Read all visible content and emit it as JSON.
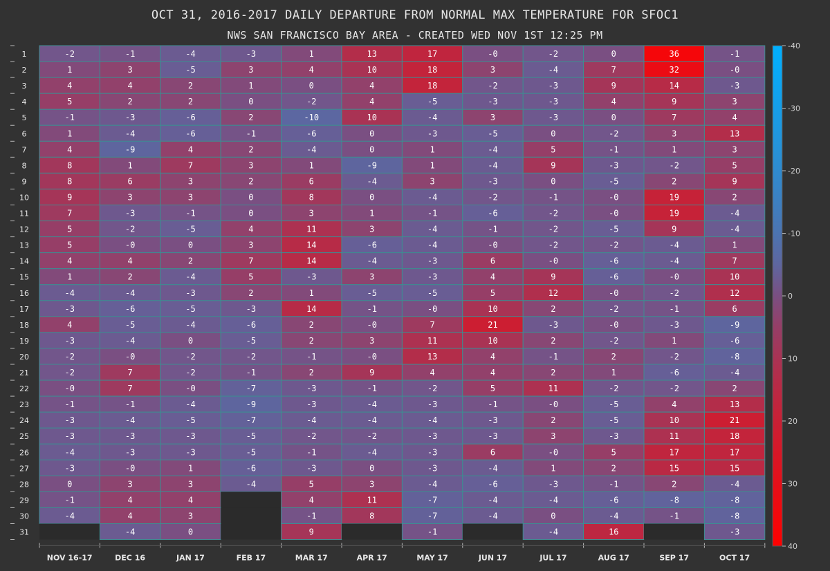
{
  "chart_data": {
    "type": "heatmap",
    "title": "OCT 31, 2016-2017 DAILY DEPARTURE FROM NORMAL MAX TEMPERATURE FOR SFOC1",
    "subtitle": "NWS SAN FRANCISCO BAY AREA - CREATED WED NOV 1ST 12:25 PM",
    "columns": [
      "NOV 16-17",
      "DEC 16",
      "JAN 17",
      "FEB 17",
      "MAR 17",
      "APR 17",
      "MAY 17",
      "JUN 17",
      "JUL 17",
      "AUG 17",
      "SEP 17",
      "OCT 17"
    ],
    "rows": [
      "1",
      "2",
      "3",
      "4",
      "5",
      "6",
      "7",
      "8",
      "9",
      "10",
      "11",
      "12",
      "13",
      "14",
      "15",
      "16",
      "17",
      "18",
      "19",
      "20",
      "21",
      "22",
      "23",
      "24",
      "25",
      "26",
      "27",
      "28",
      "29",
      "30",
      "31"
    ],
    "values": [
      [
        "-2",
        "-1",
        "-4",
        "-3",
        "1",
        "13",
        "17",
        "-0",
        "-2",
        "0",
        "36",
        "-1"
      ],
      [
        "1",
        "3",
        "-5",
        "3",
        "4",
        "10",
        "18",
        "3",
        "-4",
        "7",
        "32",
        "-0"
      ],
      [
        "4",
        "4",
        "2",
        "1",
        "0",
        "4",
        "18",
        "-2",
        "-3",
        "9",
        "14",
        "-3"
      ],
      [
        "5",
        "2",
        "2",
        "0",
        "-2",
        "4",
        "-5",
        "-3",
        "-3",
        "4",
        "9",
        "3"
      ],
      [
        "-1",
        "-3",
        "-6",
        "2",
        "-10",
        "10",
        "-4",
        "3",
        "-3",
        "0",
        "7",
        "4"
      ],
      [
        "1",
        "-4",
        "-6",
        "-1",
        "-6",
        "0",
        "-3",
        "-5",
        "0",
        "-2",
        "3",
        "13"
      ],
      [
        "4",
        "-9",
        "4",
        "2",
        "-4",
        "0",
        "1",
        "-4",
        "5",
        "-1",
        "1",
        "3"
      ],
      [
        "8",
        "1",
        "7",
        "3",
        "1",
        "-9",
        "1",
        "-4",
        "9",
        "-3",
        "-2",
        "5"
      ],
      [
        "8",
        "6",
        "3",
        "2",
        "6",
        "-4",
        "3",
        "-3",
        "0",
        "-5",
        "2",
        "9"
      ],
      [
        "9",
        "3",
        "3",
        "0",
        "8",
        "0",
        "-4",
        "-2",
        "-1",
        "-0",
        "19",
        "2"
      ],
      [
        "7",
        "-3",
        "-1",
        "0",
        "3",
        "1",
        "-1",
        "-6",
        "-2",
        "-0",
        "19",
        "-4"
      ],
      [
        "5",
        "-2",
        "-5",
        "4",
        "11",
        "3",
        "-4",
        "-1",
        "-2",
        "-5",
        "9",
        "-4"
      ],
      [
        "5",
        "-0",
        "0",
        "3",
        "14",
        "-6",
        "-4",
        "-0",
        "-2",
        "-2",
        "-4",
        "1"
      ],
      [
        "4",
        "4",
        "2",
        "7",
        "14",
        "-4",
        "-3",
        "6",
        "-0",
        "-6",
        "-4",
        "7"
      ],
      [
        "1",
        "2",
        "-4",
        "5",
        "-3",
        "3",
        "-3",
        "4",
        "9",
        "-6",
        "-0",
        "10"
      ],
      [
        "-4",
        "-4",
        "-3",
        "2",
        "1",
        "-5",
        "-5",
        "5",
        "12",
        "-0",
        "-2",
        "12"
      ],
      [
        "-3",
        "-6",
        "-5",
        "-3",
        "14",
        "-1",
        "-0",
        "10",
        "2",
        "-2",
        "-1",
        "6"
      ],
      [
        "4",
        "-5",
        "-4",
        "-6",
        "2",
        "-0",
        "7",
        "21",
        "-3",
        "-0",
        "-3",
        "-9"
      ],
      [
        "-3",
        "-4",
        "0",
        "-5",
        "2",
        "3",
        "11",
        "10",
        "2",
        "-2",
        "1",
        "-6"
      ],
      [
        "-2",
        "-0",
        "-2",
        "-2",
        "-1",
        "-0",
        "13",
        "4",
        "-1",
        "2",
        "-2",
        "-8"
      ],
      [
        "-2",
        "7",
        "-2",
        "-1",
        "2",
        "9",
        "4",
        "4",
        "2",
        "1",
        "-6",
        "-4"
      ],
      [
        "-0",
        "7",
        "-0",
        "-7",
        "-3",
        "-1",
        "-2",
        "5",
        "11",
        "-2",
        "-2",
        "2"
      ],
      [
        "-1",
        "-1",
        "-4",
        "-9",
        "-3",
        "-4",
        "-3",
        "-1",
        "-0",
        "-5",
        "4",
        "13"
      ],
      [
        "-3",
        "-4",
        "-5",
        "-7",
        "-4",
        "-4",
        "-4",
        "-3",
        "2",
        "-5",
        "10",
        "21"
      ],
      [
        "-3",
        "-3",
        "-3",
        "-5",
        "-2",
        "-2",
        "-3",
        "-3",
        "3",
        "-3",
        "11",
        "18"
      ],
      [
        "-4",
        "-3",
        "-3",
        "-5",
        "-1",
        "-4",
        "-3",
        "6",
        "-0",
        "5",
        "17",
        "17"
      ],
      [
        "-3",
        "-0",
        "1",
        "-6",
        "-3",
        "0",
        "-3",
        "-4",
        "1",
        "2",
        "15",
        "15"
      ],
      [
        "0",
        "3",
        "3",
        "-4",
        "5",
        "3",
        "-4",
        "-6",
        "-3",
        "-1",
        "2",
        "-4"
      ],
      [
        "-1",
        "4",
        "4",
        null,
        "4",
        "11",
        "-7",
        "-4",
        "-4",
        "-6",
        "-8",
        "-8"
      ],
      [
        "-4",
        "4",
        "3",
        null,
        "-1",
        "8",
        "-7",
        "-4",
        "0",
        "-4",
        "-1",
        "-8"
      ],
      [
        null,
        "-4",
        "0",
        null,
        "9",
        null,
        "-1",
        null,
        "-4",
        "16",
        null,
        "-3"
      ]
    ],
    "colorbar": {
      "ticks": [
        "-40",
        "-30",
        "-20",
        "-10",
        "0",
        "10",
        "20",
        "30",
        "40"
      ],
      "range": [
        -40,
        40
      ],
      "colors": {
        "cold": "#00b0ff",
        "neutral": "#7a4f82",
        "hot": "#ff0000"
      }
    },
    "background_color": "#323232",
    "cell_border_color": "#3d8d91",
    "empty_cell_color": "#2b2b2b"
  }
}
